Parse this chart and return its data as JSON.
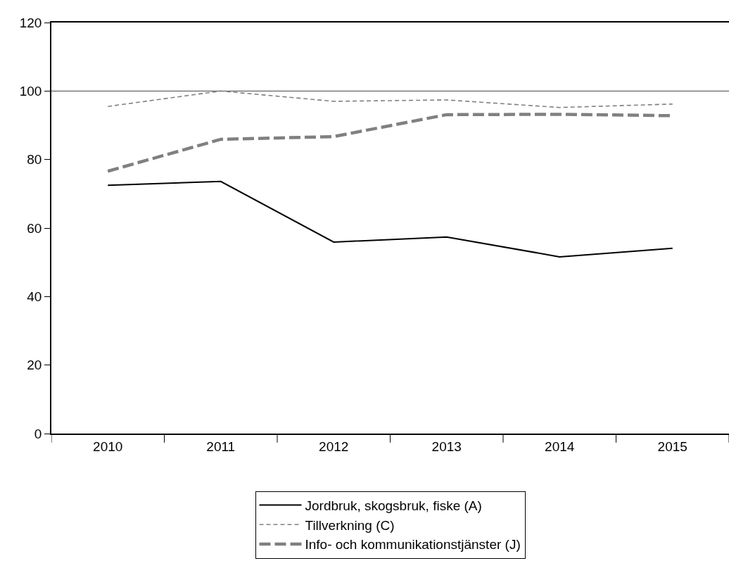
{
  "chart_data": {
    "type": "line",
    "categories": [
      "2010",
      "2011",
      "2012",
      "2013",
      "2014",
      "2015"
    ],
    "series": [
      {
        "name": "Jordbruk, skogsbruk, fiske (A)",
        "color": "#000000",
        "line_style": "solid",
        "values": [
          72.5,
          73.6,
          55.9,
          57.4,
          51.6,
          54.1
        ]
      },
      {
        "name": "Tillverkning (C)",
        "color": "#808080",
        "line_style": "dashed",
        "values": [
          95.5,
          100,
          97.0,
          97.4,
          95.2,
          96.2
        ]
      },
      {
        "name": "Info- och kommunikationstjänster (J)",
        "color": "#808080",
        "line_style": "dashed",
        "values": [
          76.6,
          85.9,
          86.7,
          93.1,
          93.2,
          92.8
        ]
      }
    ],
    "ylim": [
      0,
      120
    ],
    "yticks": [
      0,
      20,
      40,
      60,
      80,
      100,
      120
    ],
    "ref_lines": [
      {
        "axis": "y",
        "value": 100,
        "color": "#404040"
      }
    ],
    "grid": false,
    "legend": "bottom"
  }
}
